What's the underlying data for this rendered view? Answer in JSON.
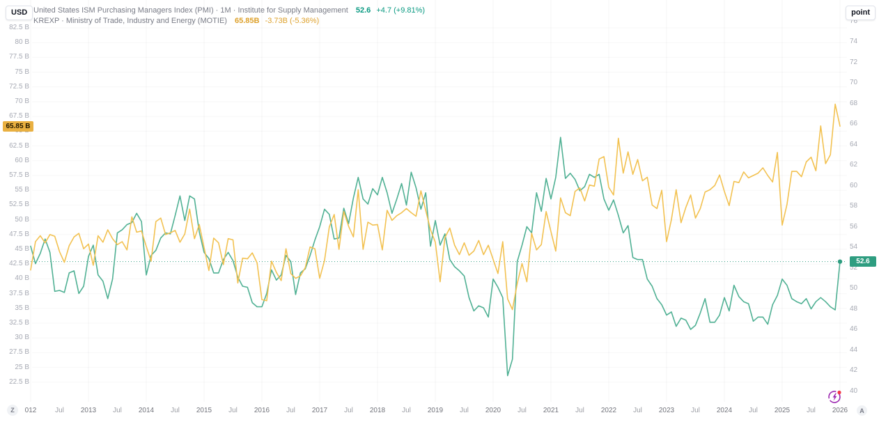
{
  "header": {
    "left_unit_button": "USD",
    "right_unit_button": "point",
    "legend": [
      {
        "name": "United States ISM Purchasing Managers Index (PMI) · 1M · Institute for Supply Management",
        "value": "52.6",
        "change": "+4.7 (+9.81%)",
        "color": "#089981"
      },
      {
        "name": "KREXP · Ministry of Trade, Industry and Energy (MOTIE)",
        "value": "65.85B",
        "change": "-3.73B (-5.36%)",
        "color": "#dda02a"
      }
    ]
  },
  "axis_badges": {
    "left": {
      "label": "65.85 B",
      "value": 65.85,
      "bg": "#e9b041"
    },
    "right": {
      "label": "52.6",
      "value": 52.6,
      "bg": "#2e9d80"
    }
  },
  "footer": {
    "timezone_button": "Z",
    "auto_button": "A",
    "boost_icon": "lightning-boost-with-notification"
  },
  "chart_data": {
    "type": "line",
    "x_unit": "month",
    "x_start": "2012-01",
    "x_end": "2026-01",
    "grid": true,
    "legend_position": "top-left",
    "x_labels": [
      {
        "m": 0,
        "t": "012"
      },
      {
        "m": 6,
        "t": "Jul"
      },
      {
        "m": 12,
        "t": "2013"
      },
      {
        "m": 18,
        "t": "Jul"
      },
      {
        "m": 24,
        "t": "2014"
      },
      {
        "m": 30,
        "t": "Jul"
      },
      {
        "m": 36,
        "t": "2015"
      },
      {
        "m": 42,
        "t": "Jul"
      },
      {
        "m": 48,
        "t": "2016"
      },
      {
        "m": 54,
        "t": "Jul"
      },
      {
        "m": 60,
        "t": "2017"
      },
      {
        "m": 66,
        "t": "Jul"
      },
      {
        "m": 72,
        "t": "2018"
      },
      {
        "m": 78,
        "t": "Jul"
      },
      {
        "m": 84,
        "t": "2019"
      },
      {
        "m": 90,
        "t": "Jul"
      },
      {
        "m": 96,
        "t": "2020"
      },
      {
        "m": 102,
        "t": "Jul"
      },
      {
        "m": 108,
        "t": "2021"
      },
      {
        "m": 114,
        "t": "Jul"
      },
      {
        "m": 120,
        "t": "2022"
      },
      {
        "m": 126,
        "t": "Jul"
      },
      {
        "m": 132,
        "t": "2023"
      },
      {
        "m": 138,
        "t": "Jul"
      },
      {
        "m": 144,
        "t": "2024"
      },
      {
        "m": 150,
        "t": "Jul"
      },
      {
        "m": 156,
        "t": "2025"
      },
      {
        "m": 162,
        "t": "Jul"
      },
      {
        "m": 168,
        "t": "2026"
      }
    ],
    "left_axis": {
      "unit": "USD billions",
      "range": [
        22.5,
        82.5
      ],
      "ticks": [
        {
          "v": 82.5,
          "t": "82.5 B"
        },
        {
          "v": 80,
          "t": "80 B"
        },
        {
          "v": 77.5,
          "t": "77.5 B"
        },
        {
          "v": 75,
          "t": "75 B"
        },
        {
          "v": 72.5,
          "t": "72.5 B"
        },
        {
          "v": 70,
          "t": "70 B"
        },
        {
          "v": 67.5,
          "t": "67.5 B"
        },
        {
          "v": 65,
          "t": "65 B"
        },
        {
          "v": 62.5,
          "t": "62.5 B"
        },
        {
          "v": 60,
          "t": "60 B"
        },
        {
          "v": 57.5,
          "t": "57.5 B"
        },
        {
          "v": 55,
          "t": "55 B"
        },
        {
          "v": 52.5,
          "t": "52.5 B"
        },
        {
          "v": 50,
          "t": "50 B"
        },
        {
          "v": 47.5,
          "t": "47.5 B"
        },
        {
          "v": 45,
          "t": "45 B"
        },
        {
          "v": 42.5,
          "t": "42.5 B"
        },
        {
          "v": 40,
          "t": "40 B"
        },
        {
          "v": 37.5,
          "t": "37.5 B"
        },
        {
          "v": 35,
          "t": "35 B"
        },
        {
          "v": 32.5,
          "t": "32.5 B"
        },
        {
          "v": 30,
          "t": "30 B"
        },
        {
          "v": 27.5,
          "t": "27.5 B"
        },
        {
          "v": 25,
          "t": "25 B"
        },
        {
          "v": 22.5,
          "t": "22.5 B"
        }
      ]
    },
    "right_axis": {
      "unit": "point",
      "range": [
        40,
        76
      ],
      "ticks": [
        {
          "v": 76,
          "t": "76"
        },
        {
          "v": 74,
          "t": "74"
        },
        {
          "v": 72,
          "t": "72"
        },
        {
          "v": 70,
          "t": "70"
        },
        {
          "v": 68,
          "t": "68"
        },
        {
          "v": 66,
          "t": "66"
        },
        {
          "v": 64,
          "t": "64"
        },
        {
          "v": 62,
          "t": "62"
        },
        {
          "v": 60,
          "t": "60"
        },
        {
          "v": 58,
          "t": "58"
        },
        {
          "v": 56,
          "t": "56"
        },
        {
          "v": 54,
          "t": "54"
        },
        {
          "v": 52,
          "t": "52"
        },
        {
          "v": 50,
          "t": "50"
        },
        {
          "v": 48,
          "t": "48"
        },
        {
          "v": 46,
          "t": "46"
        },
        {
          "v": 44,
          "t": "44"
        },
        {
          "v": 42,
          "t": "42"
        },
        {
          "v": 40,
          "t": "40"
        }
      ]
    },
    "price_line": {
      "series": "pmi",
      "value": 52.6,
      "style": "dotted",
      "color": "#2e9d80"
    },
    "series": [
      {
        "id": "pmi",
        "name": "United States ISM Purchasing Managers Index (PMI)",
        "axis": "right",
        "color": "#4fb093",
        "last_value": 52.6,
        "end_marker": true,
        "values": [
          54.1,
          52.4,
          53.4,
          54.8,
          53.5,
          49.7,
          49.8,
          49.6,
          51.5,
          51.7,
          49.5,
          50.2,
          53.1,
          54.2,
          51.3,
          50.7,
          49.0,
          50.9,
          55.4,
          55.7,
          56.2,
          56.4,
          57.3,
          56.5,
          51.3,
          53.2,
          53.7,
          54.9,
          55.4,
          55.3,
          57.1,
          59.0,
          56.6,
          59.0,
          58.7,
          55.5,
          53.5,
          52.9,
          51.5,
          51.5,
          52.8,
          53.5,
          52.7,
          51.1,
          50.2,
          50.1,
          48.6,
          48.2,
          48.2,
          49.5,
          51.8,
          50.8,
          51.3,
          53.2,
          52.6,
          49.4,
          51.5,
          51.9,
          53.2,
          54.7,
          56.0,
          57.7,
          57.2,
          54.8,
          54.9,
          57.8,
          56.3,
          58.8,
          60.8,
          58.7,
          58.2,
          59.7,
          59.1,
          60.8,
          59.3,
          57.3,
          58.7,
          60.2,
          58.1,
          61.3,
          59.8,
          57.7,
          59.3,
          54.1,
          56.6,
          54.2,
          55.3,
          52.8,
          52.1,
          51.7,
          51.2,
          49.1,
          47.8,
          48.3,
          48.1,
          47.2,
          50.9,
          50.1,
          49.1,
          41.5,
          43.1,
          52.6,
          54.2,
          56.0,
          55.4,
          59.3,
          57.5,
          60.7,
          58.7,
          60.8,
          64.7,
          60.7,
          61.2,
          60.6,
          59.5,
          59.9,
          61.1,
          60.8,
          61.1,
          58.7,
          57.6,
          58.6,
          57.1,
          55.4,
          56.1,
          53.0,
          52.8,
          52.8,
          50.9,
          50.2,
          49.0,
          48.4,
          47.4,
          47.7,
          46.3,
          47.1,
          46.9,
          46.0,
          46.4,
          47.6,
          49.0,
          46.7,
          46.7,
          47.4,
          49.1,
          47.8,
          50.3,
          49.2,
          48.7,
          48.5,
          46.8,
          47.2,
          47.2,
          46.5,
          48.4,
          49.3,
          50.9,
          50.3,
          49.0,
          48.7,
          48.5,
          49.0,
          48.0,
          48.7,
          49.1,
          48.7,
          48.2,
          47.9,
          52.6
        ]
      },
      {
        "id": "krexp",
        "name": "KREXP",
        "axis": "left",
        "color": "#f2c150",
        "last_value": 65.85,
        "end_marker": false,
        "values": [
          41.5,
          46.3,
          47.3,
          46.1,
          47.5,
          47.2,
          44.6,
          42.8,
          45.6,
          47.1,
          47.7,
          45.1,
          45.9,
          42.3,
          47.3,
          46.2,
          48.3,
          46.8,
          45.8,
          46.3,
          44.9,
          50.5,
          47.9,
          48.1,
          45.5,
          43.0,
          49.7,
          50.3,
          47.5,
          47.8,
          48.2,
          46.2,
          47.6,
          51.8,
          46.8,
          49.2,
          45.3,
          41.4,
          46.9,
          46.1,
          42.4,
          46.8,
          46.6,
          39.3,
          43.5,
          43.4,
          44.4,
          42.7,
          36.5,
          36.3,
          43.0,
          41.1,
          39.7,
          45.1,
          40.9,
          40.1,
          40.5,
          41.9,
          45.4,
          45.1,
          40.1,
          43.1,
          48.8,
          50.9,
          45.0,
          51.4,
          48.9,
          47.1,
          55.1,
          45.0,
          49.6,
          49.1,
          49.2,
          44.9,
          51.6,
          49.9,
          50.7,
          51.2,
          51.9,
          51.2,
          50.6,
          54.9,
          51.6,
          48.3,
          46.2,
          39.5,
          47.0,
          48.6,
          45.7,
          44.1,
          46.1,
          44.0,
          44.7,
          46.5,
          44.1,
          45.7,
          43.3,
          40.9,
          46.3,
          36.6,
          34.8,
          39.2,
          42.6,
          39.5,
          47.7,
          44.9,
          45.8,
          51.4,
          48.0,
          44.7,
          53.7,
          51.2,
          50.7,
          54.8,
          55.4,
          53.2,
          55.9,
          55.7,
          60.3,
          60.7,
          55.5,
          54.2,
          63.8,
          57.9,
          61.5,
          57.7,
          60.2,
          56.6,
          57.2,
          52.5,
          51.9,
          55.0,
          46.3,
          50.0,
          55.1,
          49.5,
          52.1,
          54.2,
          50.3,
          51.9,
          54.7,
          55.1,
          55.8,
          57.6,
          54.8,
          52.4,
          56.5,
          56.3,
          58.1,
          57.1,
          57.5,
          57.9,
          58.8,
          57.5,
          56.4,
          61.4,
          49.1,
          52.6,
          58.2,
          58.2,
          57.3,
          59.8,
          60.6,
          58.3,
          65.9,
          59.5,
          61.0,
          69.58,
          65.85
        ]
      }
    ]
  }
}
